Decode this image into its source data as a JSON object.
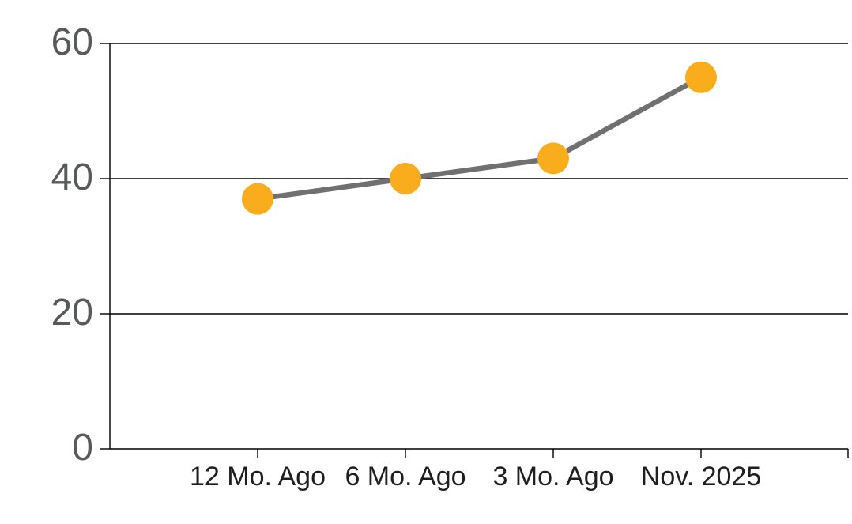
{
  "chart_data": {
    "type": "line",
    "categories": [
      "12 Mo. Ago",
      "6 Mo. Ago",
      "3 Mo. Ago",
      "Nov. 2025"
    ],
    "values": [
      37,
      40,
      43,
      55
    ],
    "title": "",
    "xlabel": "",
    "ylabel": "",
    "ylim": [
      0,
      60
    ],
    "y_ticks": [
      0,
      20,
      40,
      60
    ],
    "y_tick_labels": [
      "0",
      "20",
      "40",
      "60"
    ],
    "grid": true,
    "legend": false,
    "series_name": "trend",
    "colors": {
      "marker": "#F9AD1D",
      "line": "#707070",
      "grid": "#000000",
      "axis": "#000000",
      "y_tick_label": "#58595B",
      "x_tick_label": "#1E1E1E",
      "background": "#FFFFFF"
    }
  }
}
